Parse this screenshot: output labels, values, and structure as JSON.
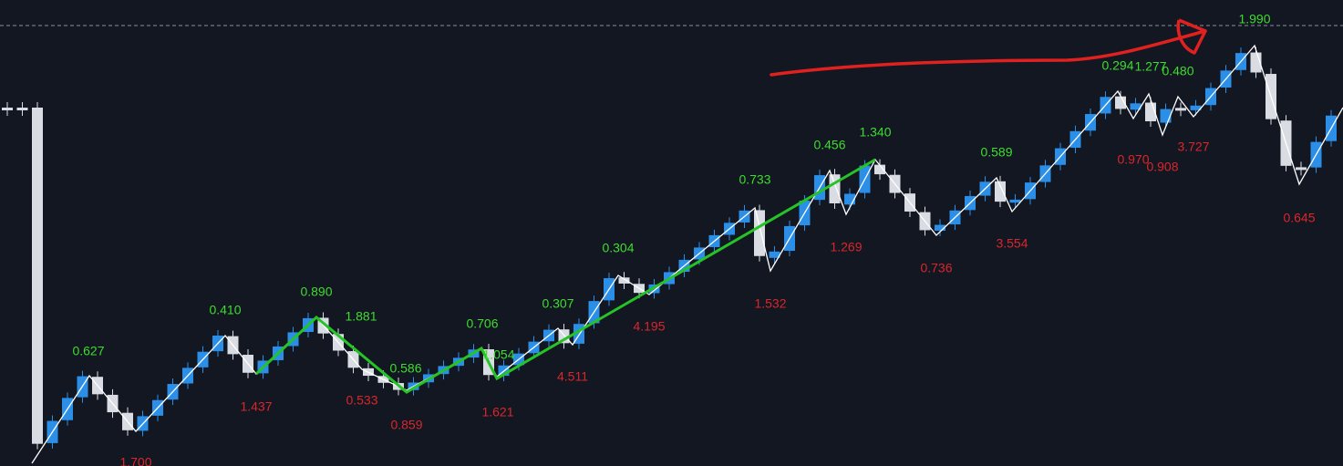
{
  "pivots": {
    "highs": [
      "0.627",
      "0.410",
      "0.890",
      "1.881",
      "0.586",
      "0.706",
      "1.054",
      "0.307",
      "0.304",
      "0.733",
      "0.456",
      "1.340",
      "0.589",
      "0.294",
      "1.277",
      "0.480",
      "1.990"
    ],
    "lows": [
      "1.700",
      "1.437",
      "0.533",
      "0.859",
      "1.621",
      "4.511",
      "4.195",
      "1.532",
      "1.269",
      "0.736",
      "3.554",
      "0.970",
      "0.908",
      "3.727",
      "0.645"
    ]
  }
}
